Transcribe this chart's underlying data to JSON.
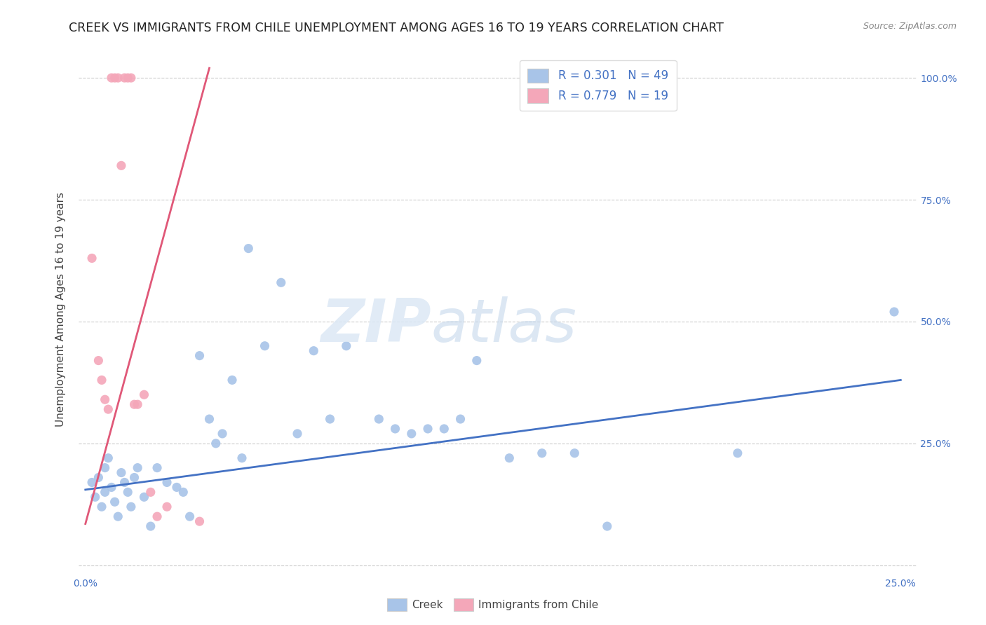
{
  "title": "CREEK VS IMMIGRANTS FROM CHILE UNEMPLOYMENT AMONG AGES 16 TO 19 YEARS CORRELATION CHART",
  "source": "Source: ZipAtlas.com",
  "ylabel": "Unemployment Among Ages 16 to 19 years",
  "xlim": [
    -0.002,
    0.255
  ],
  "ylim": [
    -0.02,
    1.07
  ],
  "xticks": [
    0.0,
    0.05,
    0.1,
    0.15,
    0.2,
    0.25
  ],
  "yticks": [
    0.0,
    0.25,
    0.5,
    0.75,
    1.0
  ],
  "xticklabels": [
    "0.0%",
    "",
    "",
    "",
    "",
    "25.0%"
  ],
  "yticklabels": [
    "",
    "25.0%",
    "50.0%",
    "75.0%",
    "100.0%"
  ],
  "creek_R": "0.301",
  "creek_N": "49",
  "chile_R": "0.779",
  "chile_N": "19",
  "creek_color": "#a8c4e8",
  "creek_line_color": "#4472c4",
  "chile_color": "#f4a7b9",
  "chile_line_color": "#e05878",
  "title_fontsize": 12.5,
  "axis_label_fontsize": 11,
  "tick_fontsize": 10,
  "creek_points_x": [
    0.002,
    0.003,
    0.004,
    0.005,
    0.006,
    0.006,
    0.007,
    0.008,
    0.009,
    0.01,
    0.011,
    0.012,
    0.013,
    0.014,
    0.015,
    0.016,
    0.018,
    0.02,
    0.022,
    0.025,
    0.028,
    0.03,
    0.032,
    0.035,
    0.038,
    0.04,
    0.042,
    0.045,
    0.048,
    0.05,
    0.055,
    0.06,
    0.065,
    0.07,
    0.075,
    0.08,
    0.09,
    0.095,
    0.1,
    0.105,
    0.11,
    0.115,
    0.12,
    0.13,
    0.14,
    0.15,
    0.16,
    0.2,
    0.248
  ],
  "creek_points_y": [
    0.17,
    0.14,
    0.18,
    0.12,
    0.2,
    0.15,
    0.22,
    0.16,
    0.13,
    0.1,
    0.19,
    0.17,
    0.15,
    0.12,
    0.18,
    0.2,
    0.14,
    0.08,
    0.2,
    0.17,
    0.16,
    0.15,
    0.1,
    0.43,
    0.3,
    0.25,
    0.27,
    0.38,
    0.22,
    0.65,
    0.45,
    0.58,
    0.27,
    0.44,
    0.3,
    0.45,
    0.3,
    0.28,
    0.27,
    0.28,
    0.28,
    0.3,
    0.42,
    0.22,
    0.23,
    0.23,
    0.08,
    0.23,
    0.52
  ],
  "chile_points_x": [
    0.002,
    0.004,
    0.005,
    0.006,
    0.007,
    0.008,
    0.009,
    0.01,
    0.011,
    0.012,
    0.013,
    0.014,
    0.015,
    0.016,
    0.018,
    0.02,
    0.022,
    0.025,
    0.035
  ],
  "chile_points_y": [
    0.63,
    0.42,
    0.38,
    0.34,
    0.32,
    1.0,
    1.0,
    1.0,
    0.82,
    1.0,
    1.0,
    1.0,
    0.33,
    0.33,
    0.35,
    0.15,
    0.1,
    0.12,
    0.09
  ],
  "creek_line_x": [
    0.0,
    0.25
  ],
  "creek_line_y": [
    0.155,
    0.38
  ],
  "chile_line_x": [
    0.0,
    0.038
  ],
  "chile_line_y": [
    0.085,
    1.02
  ]
}
